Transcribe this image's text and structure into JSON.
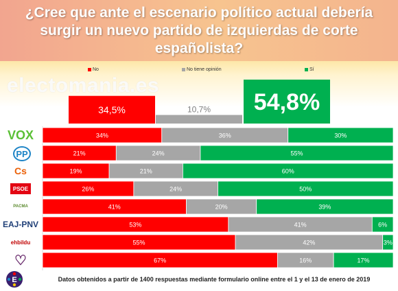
{
  "title": "¿Cree que ante el escenario político actual debería surgir un nuevo partido de izquierdas de corte españolista?",
  "watermark": "electomania.es",
  "legend": [
    {
      "label": "No",
      "color": "#ff0000"
    },
    {
      "label": "No tiene opinión",
      "color": "#a6a6a6"
    },
    {
      "label": "Sí",
      "color": "#00b050"
    }
  ],
  "footer": "Datos obtenidos a partir de 1400 respuestas mediante formulario online entre el 1 y el 13 de enero de 2019",
  "parties": [
    {
      "logo": "VOX",
      "logo_color": "#5ac035"
    },
    {
      "logo": "PP",
      "logo_color": "#1d84c6"
    },
    {
      "logo": "Cs",
      "logo_color": "#eb6109"
    },
    {
      "logo": "PSOE",
      "logo_color": "#e30613"
    },
    {
      "logo": "PACMA",
      "logo_color": "#5b8a2e"
    },
    {
      "logo": "EAJ-PNV",
      "logo_color": "#1f3f77"
    },
    {
      "logo": "ehbildu",
      "logo_color": "#c00000"
    },
    {
      "logo": "Podemos",
      "logo_color": "#6b2d6e"
    }
  ],
  "footer_logo_icon": "electomania-e-logo-icon",
  "chart_data": [
    {
      "type": "bar",
      "orientation": "vertical",
      "categories": [
        "No",
        "No tiene opinión",
        "Sí"
      ],
      "values": [
        34.5,
        10.7,
        54.8
      ],
      "labels": [
        "34,5%",
        "10,7%",
        "54,8%"
      ],
      "colors": [
        "#ff0000",
        "#a6a6a6",
        "#00b050"
      ]
    },
    {
      "type": "bar",
      "orientation": "horizontal",
      "stacked": "percent",
      "categories": [
        "VOX",
        "PP",
        "Cs",
        "PSOE",
        "PACMA",
        "EAJ-PNV",
        "EH Bildu",
        "Podemos"
      ],
      "series": [
        {
          "name": "No",
          "color": "#ff0000",
          "values": [
            34,
            21,
            19,
            26,
            41,
            53,
            55,
            67
          ],
          "labels": [
            "34%",
            "21%",
            "19%",
            "26%",
            "41%",
            "53%",
            "55%",
            "67%"
          ]
        },
        {
          "name": "No tiene opinión",
          "color": "#a6a6a6",
          "values": [
            36,
            24,
            21,
            24,
            20,
            41,
            42,
            16
          ],
          "labels": [
            "36%",
            "24%",
            "21%",
            "24%",
            "20%",
            "41%",
            "42%",
            "16%"
          ]
        },
        {
          "name": "Sí",
          "color": "#00b050",
          "values": [
            30,
            55,
            60,
            50,
            39,
            6,
            3,
            17
          ],
          "labels": [
            "30%",
            "55%",
            "60%",
            "50%",
            "39%",
            "6%",
            "3%",
            "17%"
          ]
        }
      ]
    }
  ]
}
